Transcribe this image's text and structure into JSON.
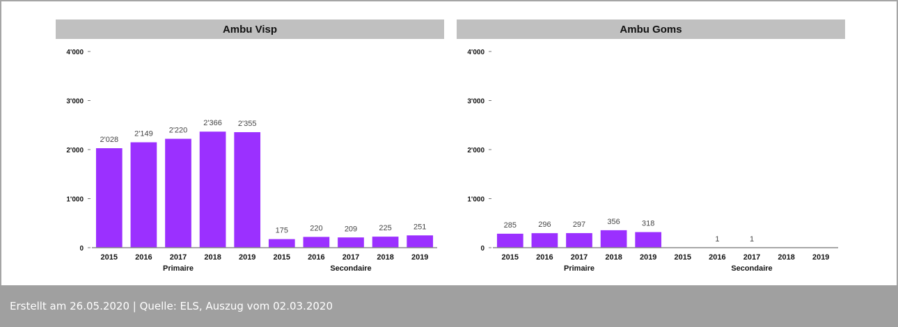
{
  "chart_data": [
    {
      "type": "bar",
      "title": "Ambu Visp",
      "categories": [
        "2015",
        "2016",
        "2017",
        "2018",
        "2019",
        "2015",
        "2016",
        "2017",
        "2018",
        "2019"
      ],
      "groups": [
        {
          "label": "Primaire",
          "count": 5
        },
        {
          "label": "Secondaire",
          "count": 5
        }
      ],
      "values": [
        2028,
        2149,
        2220,
        2366,
        2355,
        175,
        220,
        209,
        225,
        251
      ],
      "data_labels": [
        "2'028",
        "2'149",
        "2'220",
        "2'366",
        "2'355",
        "175",
        "220",
        "209",
        "225",
        "251"
      ],
      "yticks": [
        0,
        1000,
        2000,
        3000,
        4000
      ],
      "ytick_labels": [
        "0",
        "1'000",
        "2'000",
        "3'000",
        "4'000"
      ],
      "ylim": [
        0,
        4000
      ],
      "bar_color": "#9b30ff",
      "grid": false
    },
    {
      "type": "bar",
      "title": "Ambu Goms",
      "categories": [
        "2015",
        "2016",
        "2017",
        "2018",
        "2019",
        "2015",
        "2016",
        "2017",
        "2018",
        "2019"
      ],
      "groups": [
        {
          "label": "Primaire",
          "count": 5
        },
        {
          "label": "Secondaire",
          "count": 5
        }
      ],
      "values": [
        285,
        296,
        297,
        356,
        318,
        0,
        1,
        1,
        0,
        0
      ],
      "data_labels": [
        "285",
        "296",
        "297",
        "356",
        "318",
        "",
        "1",
        "1",
        "",
        ""
      ],
      "yticks": [
        0,
        1000,
        2000,
        3000,
        4000
      ],
      "ytick_labels": [
        "0",
        "1'000",
        "2'000",
        "3'000",
        "4'000"
      ],
      "ylim": [
        0,
        4000
      ],
      "bar_color": "#9b30ff",
      "grid": false
    }
  ],
  "footer": {
    "text": "Erstellt am 26.05.2020 | Quelle: ELS, Auszug vom 02.03.2020"
  }
}
